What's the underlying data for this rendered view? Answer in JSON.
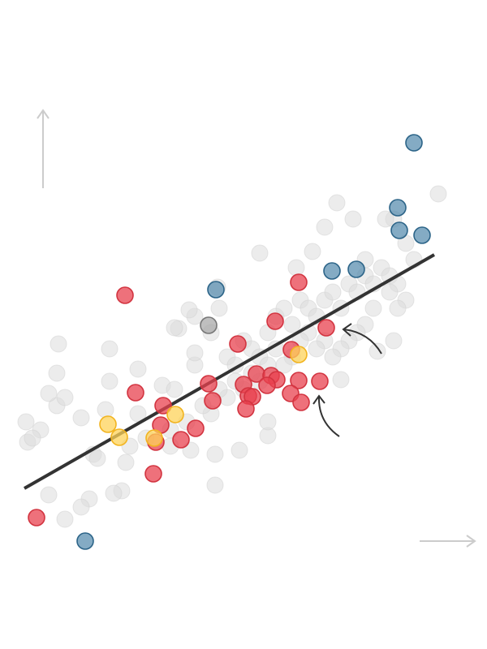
{
  "chart_data": {
    "type": "scatter",
    "xlim": [
      0,
      540
    ],
    "ylim": [
      0,
      540
    ],
    "series": [
      {
        "color": "#dcdcdc",
        "stroke": "#d0d0d0",
        "x": [
          12,
          14,
          30,
          50,
          60,
          40,
          80,
          110,
          95,
          90,
          80,
          130,
          120,
          60,
          40,
          20,
          50,
          115,
          115,
          150,
          180,
          195,
          220,
          220,
          200,
          220,
          250,
          240,
          260,
          270,
          280,
          290,
          300,
          310,
          320,
          330,
          340,
          350,
          360,
          370,
          380,
          390,
          400,
          410,
          420,
          430,
          440,
          450,
          460,
          470,
          480,
          470,
          460,
          440,
          430,
          420,
          410,
          400,
          390,
          380,
          370,
          360,
          350,
          340,
          330,
          320,
          310,
          300,
          290,
          280,
          270,
          260,
          250,
          240,
          230,
          210,
          190,
          160,
          150,
          140,
          135,
          245,
          245,
          275,
          310,
          310,
          400,
          465,
          445,
          395,
          415,
          465,
          490,
          480,
          455,
          430,
          380,
          300,
          365,
          345,
          195,
          52,
          248,
          213,
          520,
          215,
          190,
          100
        ],
        "values": [
          160,
          135,
          150,
          180,
          190,
          195,
          165,
          175,
          120,
          65,
          55,
          75,
          72,
          40,
          70,
          140,
          220,
          250,
          210,
          225,
          205,
          200,
          230,
          245,
          275,
          290,
          300,
          270,
          240,
          230,
          260,
          250,
          240,
          270,
          290,
          300,
          280,
          310,
          300,
          290,
          310,
          320,
          300,
          330,
          320,
          340,
          330,
          350,
          340,
          330,
          310,
          300,
          320,
          300,
          280,
          270,
          260,
          250,
          240,
          260,
          250,
          270,
          260,
          240,
          230,
          250,
          230,
          210,
          220,
          200,
          210,
          190,
          200,
          170,
          180,
          160,
          150,
          140,
          170,
          130,
          110,
          120,
          82,
          125,
          143,
          160,
          212,
          260,
          247,
          430,
          410,
          410,
          360,
          380,
          410,
          360,
          400,
          368,
          370,
          350,
          276,
          256,
          326,
          298,
          441,
          125,
          130,
          115
        ]
      },
      {
        "color": "#e8424f",
        "stroke": "#d23440",
        "x": [
          134,
          348,
          319,
          382,
          273,
          339,
          147,
          237,
          242,
          296,
          314,
          321,
          280,
          309,
          286,
          291,
          283,
          348,
          374,
          338,
          351,
          181,
          178,
          221,
          203,
          172,
          169,
          25
        ],
        "values": [
          316,
          332,
          284,
          276,
          256,
          249,
          196,
          207,
          186,
          219,
          217,
          212,
          206,
          205,
          192,
          191,
          176,
          211,
          210,
          195,
          184,
          180,
          156,
          152,
          138,
          135,
          96,
          42
        ]
      },
      {
        "color": "#fdd35a",
        "stroke": "#f2b41f",
        "x": [
          348,
          113,
          127,
          196,
          170
        ],
        "values": [
          243,
          157,
          141,
          169,
          140
        ]
      },
      {
        "color": "#aaaaaa",
        "stroke": "#777777",
        "x": [
          237
        ],
        "values": [
          279
        ]
      },
      {
        "color": "#5b8fb0",
        "stroke": "#2c6488",
        "x": [
          490,
          470,
          472,
          500,
          389,
          419,
          246,
          85
        ],
        "values": [
          504,
          424,
          396,
          390,
          346,
          348,
          323,
          13
        ]
      }
    ],
    "trend_line": {
      "color": "#333333",
      "x": [
        10,
        515
      ],
      "values": [
        78,
        366
      ]
    }
  }
}
